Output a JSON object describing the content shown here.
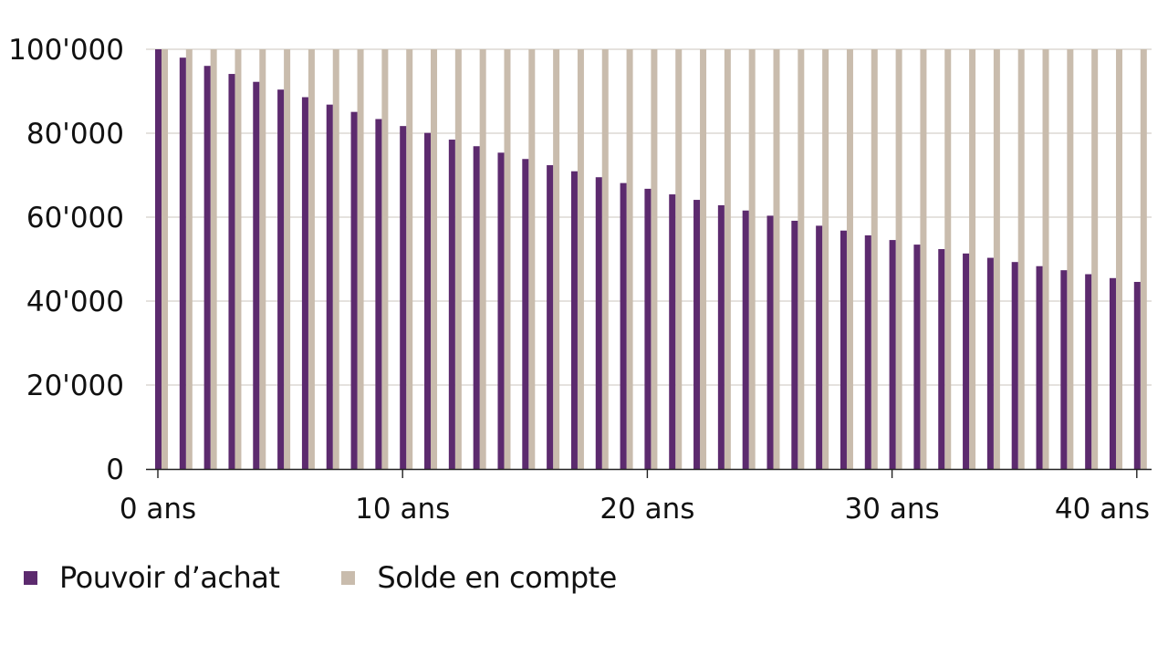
{
  "chart_data": {
    "type": "bar",
    "title": "",
    "xlabel": "",
    "ylabel": "",
    "ylim": [
      0,
      100000
    ],
    "y_ticks": [
      "0",
      "20'000",
      "40'000",
      "60'000",
      "80'000",
      "100'000"
    ],
    "y_tick_values": [
      0,
      20000,
      40000,
      60000,
      80000,
      100000
    ],
    "x_tick_labels": [
      "0 ans",
      "10 ans",
      "20 ans",
      "30 ans",
      "40 ans"
    ],
    "x_tick_positions": [
      0,
      10,
      20,
      30,
      40
    ],
    "grid": true,
    "legend_position": "bottom",
    "categories": [
      0,
      1,
      2,
      3,
      4,
      5,
      6,
      7,
      8,
      9,
      10,
      11,
      12,
      13,
      14,
      15,
      16,
      17,
      18,
      19,
      20,
      21,
      22,
      23,
      24,
      25,
      26,
      27,
      28,
      29,
      30,
      31,
      32,
      33,
      34,
      35,
      36,
      37,
      38,
      39,
      40
    ],
    "series": [
      {
        "name": "Pouvoir d’achat",
        "color": "#5c2a6e",
        "values": [
          100000,
          98000,
          96040,
          94119,
          92237,
          90392,
          88584,
          86813,
          85076,
          83375,
          81707,
          80073,
          78472,
          76902,
          75364,
          73857,
          72380,
          70932,
          69514,
          68123,
          66761,
          65426,
          64117,
          62835,
          61578,
          60346,
          59140,
          57957,
          56798,
          55662,
          54548,
          53457,
          52388,
          51341,
          50314,
          49307,
          48321,
          47355,
          46408,
          45479,
          44570
        ]
      },
      {
        "name": "Solde en compte",
        "color": "#c9bcad",
        "values": [
          100000,
          100000,
          100000,
          100000,
          100000,
          100000,
          100000,
          100000,
          100000,
          100000,
          100000,
          100000,
          100000,
          100000,
          100000,
          100000,
          100000,
          100000,
          100000,
          100000,
          100000,
          100000,
          100000,
          100000,
          100000,
          100000,
          100000,
          100000,
          100000,
          100000,
          100000,
          100000,
          100000,
          100000,
          100000,
          100000,
          100000,
          100000,
          100000,
          100000,
          100000
        ]
      }
    ]
  },
  "legend": {
    "items": [
      {
        "label": "Pouvoir d’achat",
        "color": "#5c2a6e"
      },
      {
        "label": "Solde en compte",
        "color": "#c9bcad"
      }
    ]
  },
  "style": {
    "gridline_color": "#d5d0cb",
    "axis_color": "#222222"
  }
}
